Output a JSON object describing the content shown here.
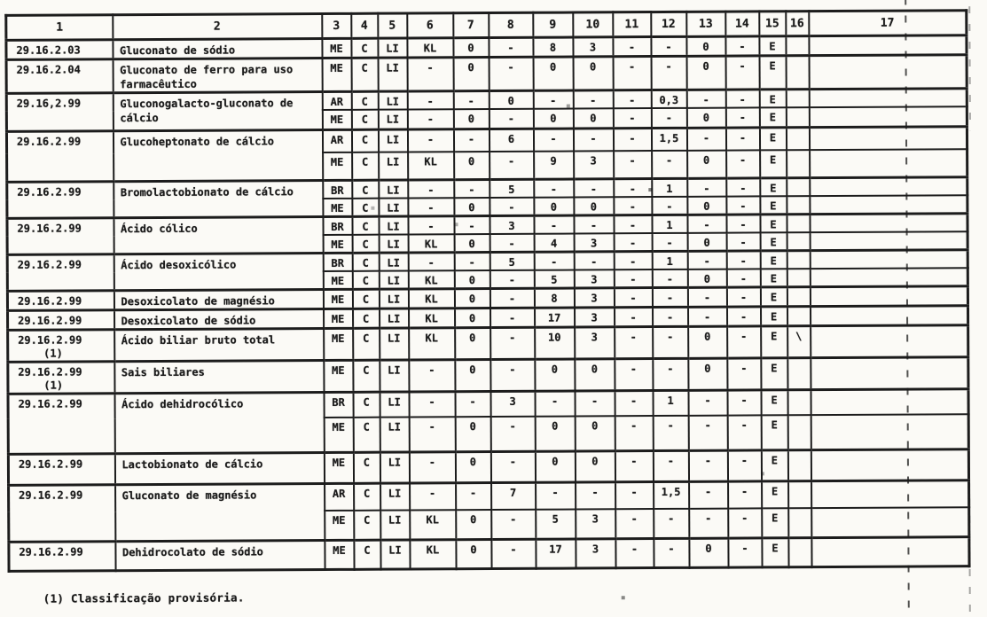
{
  "colors": {
    "ink": "#1c1c1c",
    "paper": "#fbfaf6"
  },
  "table": {
    "column_headers": [
      "1",
      "2",
      "3",
      "4",
      "5",
      "6",
      "7",
      "8",
      "9",
      "10",
      "11",
      "12",
      "13",
      "14",
      "15",
      "16",
      "17"
    ],
    "entries": [
      {
        "code": "29.16.2.03",
        "name": "Gluconato de sódio",
        "rows": [
          [
            "ME",
            "C",
            "LI",
            "KL",
            "0",
            "-",
            "8",
            "3",
            "-",
            "-",
            "0",
            "-",
            "E",
            "",
            ""
          ]
        ]
      },
      {
        "code": "29.16.2.04",
        "name": "Gluconato de ferro para uso\nfarmacêutico",
        "rows": [
          [
            "ME",
            "C",
            "LI",
            "-",
            "0",
            "-",
            "0",
            "0",
            "-",
            "-",
            "0",
            "-",
            "E",
            "",
            ""
          ]
        ]
      },
      {
        "code": "29.16,2.99",
        "name": "Gluconogalacto-gluconato de\ncálcio",
        "rows": [
          [
            "AR",
            "C",
            "LI",
            "-",
            "-",
            "0",
            "-",
            "-",
            "-",
            "0,3",
            "-",
            "-",
            "E",
            "",
            ""
          ],
          [
            "ME",
            "C",
            "LI",
            "-",
            "0",
            "-",
            "0",
            "0",
            "-",
            "-",
            "0",
            "-",
            "E",
            "",
            ""
          ]
        ]
      },
      {
        "code": "29.16.2.99",
        "name": "Glucoheptonato de cálcio",
        "rows": [
          [
            "AR",
            "C",
            "LI",
            "-",
            "-",
            "6",
            "-",
            "-",
            "-",
            "1,5",
            "-",
            "-",
            "E",
            "",
            ""
          ],
          [
            "ME",
            "C",
            "LI",
            "KL",
            "0",
            "-",
            "9",
            "3",
            "-",
            "-",
            "0",
            "-",
            "E",
            "",
            ""
          ]
        ]
      },
      {
        "code": "29.16.2.99",
        "name": "Bromolactobionato de cálcio",
        "rows": [
          [
            "BR",
            "C",
            "LI",
            "-",
            "-",
            "5",
            "-",
            "-",
            "-",
            "1",
            "-",
            "-",
            "E",
            "",
            ""
          ],
          [
            "ME",
            "C",
            "LI",
            "-",
            "0",
            "-",
            "0",
            "0",
            "-",
            "-",
            "0",
            "-",
            "E",
            "",
            ""
          ]
        ]
      },
      {
        "code": "29.16.2.99",
        "name": "Ácido cólico",
        "rows": [
          [
            "BR",
            "C",
            "LI",
            "-",
            "-",
            "3",
            "-",
            "-",
            "-",
            "1",
            "-",
            "-",
            "E",
            "",
            ""
          ],
          [
            "ME",
            "C",
            "LI",
            "KL",
            "0",
            "-",
            "4",
            "3",
            "-",
            "-",
            "0",
            "-",
            "E",
            "",
            ""
          ]
        ]
      },
      {
        "code": "29.16.2.99",
        "name": "Ácido desoxicólico",
        "rows": [
          [
            "BR",
            "C",
            "LI",
            "-",
            "-",
            "5",
            "-",
            "-",
            "-",
            "1",
            "-",
            "-",
            "E",
            "",
            ""
          ],
          [
            "ME",
            "C",
            "LI",
            "KL",
            "0",
            "-",
            "5",
            "3",
            "-",
            "-",
            "0",
            "-",
            "E",
            "",
            ""
          ]
        ]
      },
      {
        "code": "29.16.2.99",
        "name": "Desoxicolato de magnésio",
        "rows": [
          [
            "ME",
            "C",
            "LI",
            "KL",
            "0",
            "-",
            "8",
            "3",
            "-",
            "-",
            "-",
            "-",
            "E",
            "",
            ""
          ]
        ]
      },
      {
        "code": "29.16.2.99",
        "name": "Desoxicolato de sódio",
        "rows": [
          [
            "ME",
            "C",
            "LI",
            "KL",
            "0",
            "-",
            "17",
            "3",
            "-",
            "-",
            "-",
            "-",
            "E",
            "",
            ""
          ]
        ]
      },
      {
        "code": "29.16.2.99\n    (1)",
        "name": "Ácido biliar bruto total",
        "rows": [
          [
            "ME",
            "C",
            "LI",
            "KL",
            "0",
            "-",
            "10",
            "3",
            "-",
            "-",
            "0",
            "-",
            "E",
            "\\",
            ""
          ]
        ]
      },
      {
        "code": "29.16.2.99\n    (1)",
        "name": "Sais biliares",
        "rows": [
          [
            "ME",
            "C",
            "LI",
            "-",
            "0",
            "-",
            "0",
            "0",
            "-",
            "-",
            "0",
            "-",
            "E",
            "",
            ""
          ]
        ]
      },
      {
        "code": "29.16.2.99",
        "name": "Ácido dehidrocólico",
        "rows": [
          [
            "BR",
            "C",
            "LI",
            "-",
            "-",
            "3",
            "-",
            "-",
            "-",
            "1",
            "-",
            "-",
            "E",
            "",
            ""
          ],
          [
            "ME",
            "C",
            "LI",
            "-",
            "0",
            "-",
            "0",
            "0",
            "-",
            "-",
            "-",
            "-",
            "E",
            "",
            ""
          ]
        ]
      },
      {
        "code": "29.16.2.99",
        "name": "Lactobionato de cálcio",
        "rows": [
          [
            "ME",
            "C",
            "LI",
            "-",
            "0",
            "-",
            "0",
            "0",
            "-",
            "-",
            "-",
            "-",
            "E",
            "",
            ""
          ]
        ]
      },
      {
        "code": "29.16.2.99",
        "name": "Gluconato de magnésio",
        "rows": [
          [
            "AR",
            "C",
            "LI",
            "-",
            "-",
            "7",
            "-",
            "-",
            "-",
            "1,5",
            "-",
            "-",
            "E",
            "",
            ""
          ],
          [
            "ME",
            "C",
            "LI",
            "KL",
            "0",
            "-",
            "5",
            "3",
            "-",
            "-",
            "-",
            "-",
            "E",
            "",
            ""
          ]
        ]
      },
      {
        "code": "29.16.2.99",
        "name": "Dehidrocolato de sódio",
        "rows": [
          [
            "ME",
            "C",
            "LI",
            "KL",
            "0",
            "-",
            "17",
            "3",
            "-",
            "-",
            "0",
            "-",
            "E",
            "",
            ""
          ]
        ]
      }
    ]
  },
  "footnote": "(1) Classificação provisória."
}
